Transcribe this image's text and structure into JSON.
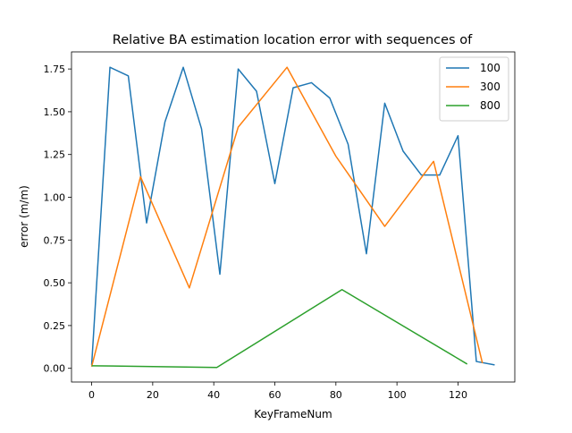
{
  "chart_data": {
    "type": "line",
    "title": "Relative BA estimation location error with sequences of",
    "xlabel": "KeyFrameNum",
    "ylabel": "error (m/m)",
    "xlim": [
      -6.6,
      138.6
    ],
    "ylim": [
      -0.08,
      1.85
    ],
    "xticks": [
      0,
      20,
      40,
      60,
      80,
      100,
      120
    ],
    "yticks": [
      0.0,
      0.25,
      0.5,
      0.75,
      1.0,
      1.25,
      1.5,
      1.75
    ],
    "xtick_labels": [
      "0",
      "20",
      "40",
      "60",
      "80",
      "100",
      "120"
    ],
    "ytick_labels": [
      "0.00",
      "0.25",
      "0.50",
      "0.75",
      "1.00",
      "1.25",
      "1.50",
      "1.75"
    ],
    "grid": false,
    "legend_position": "top-right",
    "series": [
      {
        "name": "100",
        "color": "#1f77b4",
        "x": [
          0,
          6,
          12,
          18,
          24,
          30,
          36,
          42,
          48,
          54,
          60,
          66,
          72,
          78,
          84,
          90,
          96,
          102,
          108,
          114,
          120,
          126,
          132
        ],
        "y": [
          0.02,
          1.76,
          1.71,
          0.85,
          1.44,
          1.76,
          1.4,
          0.55,
          1.75,
          1.62,
          1.08,
          1.64,
          1.67,
          1.58,
          1.31,
          0.67,
          1.55,
          1.27,
          1.13,
          1.13,
          1.36,
          0.04,
          0.02
        ]
      },
      {
        "name": "300",
        "color": "#ff7f0e",
        "x": [
          0,
          16,
          32,
          48,
          64,
          80,
          96,
          112,
          128
        ],
        "y": [
          0.01,
          1.12,
          0.47,
          1.41,
          1.76,
          1.24,
          0.83,
          1.21,
          0.03
        ]
      },
      {
        "name": "800",
        "color": "#2ca02c",
        "x": [
          0,
          41,
          82,
          123
        ],
        "y": [
          0.015,
          0.005,
          0.46,
          0.025
        ]
      }
    ]
  }
}
